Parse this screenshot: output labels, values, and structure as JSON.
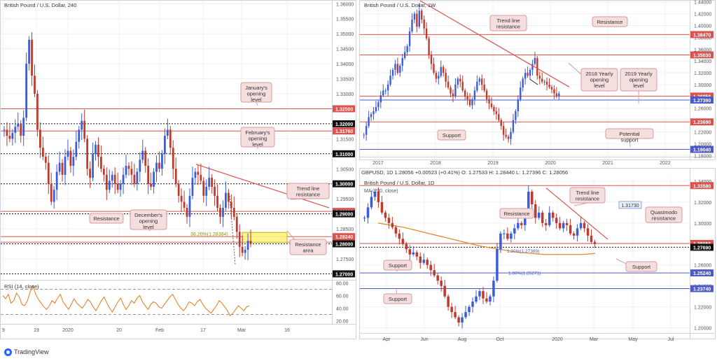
{
  "footer": {
    "brand": "TradingView"
  },
  "colors": {
    "up": "#3b5bdb",
    "down": "#c0392b",
    "res": "#d9534f",
    "sup": "#4c5ac9",
    "black": "#111111",
    "trend": "#d9534f",
    "rsi": "#e07b20",
    "ma": "#e08a2c",
    "zone": "#fff37a",
    "callout_bg": "#f5dede",
    "callout_border": "#d89a9a"
  },
  "chart_data": [
    {
      "id": "h4",
      "type": "candlestick",
      "title": "British Pound / U.S. Dollar, 240",
      "x_ticks": [
        "9",
        "19",
        "2020",
        "20",
        "Feb",
        "17",
        "Mar",
        "16"
      ],
      "y_ticks": [
        "1.36000",
        "1.35500",
        "1.35000",
        "1.34500",
        "1.34000",
        "1.33500",
        "1.33000",
        "1.32500",
        "1.32000",
        "1.31500",
        "1.31000",
        "1.30500",
        "1.30000",
        "1.29500",
        "1.29000",
        "1.28500",
        "1.28000",
        "1.27500",
        "1.27000"
      ],
      "ylim": [
        1.268,
        1.361
      ],
      "levels": [
        {
          "value": "1.32500",
          "y": 1.325,
          "style": "res"
        },
        {
          "value": "1.32000",
          "y": 1.32,
          "style": "black"
        },
        {
          "value": "1.31760",
          "y": 1.3176,
          "style": "res"
        },
        {
          "value": "1.31000",
          "y": 1.31,
          "style": "black"
        },
        {
          "value": "1.30000",
          "y": 1.3,
          "style": "black"
        },
        {
          "value": "1.29080",
          "y": 1.2908,
          "style": "res"
        },
        {
          "value": "1.29000",
          "y": 1.29,
          "style": "black"
        },
        {
          "value": "1.28240",
          "y": 1.2824,
          "style": "res"
        },
        {
          "value": "1.28056",
          "y": 1.28056,
          "style": "res"
        },
        {
          "value": "1.28000",
          "y": 1.28,
          "style": "black"
        },
        {
          "value": "1.27000",
          "y": 1.27,
          "style": "black"
        }
      ],
      "fib_label": "38.20%(1.28384)",
      "zone": [
        1.2838,
        1.2805
      ],
      "path": [
        1.318,
        1.316,
        1.315,
        1.317,
        1.319,
        1.32,
        1.316,
        1.322,
        1.34,
        1.348,
        1.336,
        1.33,
        1.318,
        1.312,
        1.309,
        1.307,
        1.3,
        1.294,
        1.298,
        1.304,
        1.307,
        1.303,
        1.309,
        1.311,
        1.306,
        1.309,
        1.314,
        1.318,
        1.321,
        1.315,
        1.305,
        1.302,
        1.31,
        1.313,
        1.309,
        1.305,
        1.303,
        1.298,
        1.301,
        1.303,
        1.3,
        1.298,
        1.3,
        1.303,
        1.306,
        1.305,
        1.303,
        1.3,
        1.304,
        1.308,
        1.311,
        1.306,
        1.3,
        1.299,
        1.304,
        1.307,
        1.305,
        1.31,
        1.316,
        1.318,
        1.312,
        1.305,
        1.3,
        1.296,
        1.294,
        1.292,
        1.289,
        1.296,
        1.302,
        1.304,
        1.303,
        1.301,
        1.296,
        1.299,
        1.302,
        1.299,
        1.296,
        1.292,
        1.289,
        1.292,
        1.297,
        1.294,
        1.292,
        1.289,
        1.284,
        1.279,
        1.277,
        1.278,
        1.281,
        1.28
      ]
    },
    {
      "id": "rsi",
      "type": "line",
      "title": "RSI (14, close)",
      "y_ticks": [
        "80.00",
        "60.00",
        "40.00",
        "20.00"
      ],
      "ylim": [
        15,
        85
      ],
      "guides": [
        70,
        30
      ],
      "values": [
        60,
        55,
        62,
        48,
        52,
        64,
        58,
        46,
        44,
        52,
        66,
        76,
        62,
        54,
        48,
        42,
        38,
        44,
        52,
        48,
        56,
        62,
        50,
        44,
        38,
        46,
        55,
        48,
        44,
        40,
        46,
        54,
        50,
        42,
        36,
        44,
        52,
        58,
        48,
        40,
        34,
        42,
        50,
        56,
        46,
        38,
        44,
        52,
        48,
        56,
        60,
        50,
        44,
        38,
        46,
        50,
        48,
        42,
        40,
        46,
        52,
        58,
        62,
        54,
        46,
        40,
        36,
        42,
        50,
        48,
        44,
        50,
        54,
        46,
        40,
        36,
        32,
        38,
        44,
        52,
        48,
        42,
        36,
        28,
        32,
        38,
        44,
        40,
        36,
        42,
        44
      ]
    },
    {
      "id": "weekly",
      "type": "candlestick",
      "title": "British Pound / U.S. Dollar, 1W",
      "x_ticks": [
        "2017",
        "2018",
        "2019",
        "2020",
        "2021",
        "2022"
      ],
      "y_ticks": [
        "1.44000",
        "1.42000",
        "1.40000",
        "1.38000",
        "1.36000",
        "1.34000",
        "1.32000",
        "1.30000",
        "1.28000",
        "1.26000",
        "1.24000",
        "1.22000",
        "1.20000",
        "1.18000"
      ],
      "ylim": [
        1.178,
        1.442
      ],
      "levels": [
        {
          "value": "1.38470",
          "y": 1.3847,
          "style": "res"
        },
        {
          "value": "1.35030",
          "y": 1.3503,
          "style": "res"
        },
        {
          "value": "1.28056",
          "y": 1.28056,
          "style": "res"
        },
        {
          "value": "1.27390",
          "y": 1.2739,
          "style": "sup"
        },
        {
          "value": "1.23690",
          "y": 1.2369,
          "style": "res"
        },
        {
          "value": "1.19040",
          "y": 1.1904,
          "style": "sup"
        }
      ],
      "path": [
        1.215,
        1.23,
        1.245,
        1.25,
        1.255,
        1.262,
        1.27,
        1.282,
        1.29,
        1.29,
        1.3,
        1.315,
        1.325,
        1.335,
        1.32,
        1.332,
        1.345,
        1.355,
        1.365,
        1.39,
        1.41,
        1.42,
        1.398,
        1.425,
        1.41,
        1.395,
        1.378,
        1.35,
        1.335,
        1.32,
        1.31,
        1.315,
        1.33,
        1.32,
        1.305,
        1.295,
        1.285,
        1.28,
        1.3,
        1.31,
        1.305,
        1.29,
        1.28,
        1.275,
        1.265,
        1.275,
        1.29,
        1.305,
        1.31,
        1.3,
        1.29,
        1.275,
        1.268,
        1.262,
        1.255,
        1.25,
        1.24,
        1.23,
        1.215,
        1.212,
        1.208,
        1.22,
        1.24,
        1.255,
        1.275,
        1.295,
        1.31,
        1.32,
        1.315,
        1.325,
        1.335,
        1.345,
        1.315,
        1.31,
        1.305,
        1.305,
        1.3,
        1.296,
        1.292,
        1.285,
        1.28,
        1.285
      ]
    },
    {
      "id": "daily",
      "type": "candlestick",
      "title": "British Pound / U.S. Dollar, 1D",
      "ohlc_bar": {
        "symbol": "GBPUSD, 1D",
        "change": "1.28056 +0.00523 (+0.41%)",
        "o": "O: 1.27533",
        "h": "H: 1.28440",
        "l": "L: 1.27396",
        "c": "C: 1.28056"
      },
      "ma_label": "MA (200, close)",
      "x_ticks": [
        "Apr",
        "Jun",
        "Aug",
        "Oct",
        "2020",
        "Mar",
        "May",
        "Jul"
      ],
      "y_ticks": [
        "1.34000",
        "1.32000",
        "1.30000",
        "1.28000",
        "1.26000",
        "1.24000",
        "1.22000",
        "1.20000"
      ],
      "ylim": [
        1.195,
        1.344
      ],
      "levels": [
        {
          "value": "1.33580",
          "y": 1.3358,
          "style": "res"
        },
        {
          "value": "1.28056",
          "y": 1.28056,
          "style": "res"
        },
        {
          "value": "1.27690",
          "y": 1.2769,
          "style": "black"
        },
        {
          "value": "1.25240",
          "y": 1.2524,
          "style": "sup"
        },
        {
          "value": "1.23740",
          "y": 1.2374,
          "style": "sup"
        }
      ],
      "extra_label": "1.31730",
      "fib_labels": [
        "1.20%(1.27389)",
        "1.80%(1.25271)"
      ],
      "path": [
        1.305,
        1.315,
        1.325,
        1.33,
        1.32,
        1.31,
        1.305,
        1.3,
        1.296,
        1.29,
        1.285,
        1.28,
        1.275,
        1.27,
        1.272,
        1.268,
        1.262,
        1.265,
        1.26,
        1.255,
        1.25,
        1.245,
        1.24,
        1.23,
        1.22,
        1.215,
        1.21,
        1.205,
        1.21,
        1.215,
        1.22,
        1.225,
        1.23,
        1.235,
        1.228,
        1.225,
        1.23,
        1.245,
        1.275,
        1.29,
        1.29,
        1.285,
        1.29,
        1.295,
        1.3,
        1.298,
        1.31,
        1.33,
        1.318,
        1.305,
        1.31,
        1.3,
        1.298,
        1.31,
        1.305,
        1.3,
        1.295,
        1.3,
        1.298,
        1.29,
        1.288,
        1.295,
        1.3,
        1.295,
        1.288,
        1.282,
        1.28
      ],
      "ma_path": [
        1.3,
        1.298,
        1.296,
        1.293,
        1.29,
        1.287,
        1.284,
        1.281,
        1.278,
        1.276,
        1.274,
        1.272,
        1.271,
        1.27,
        1.27,
        1.27,
        1.27,
        1.271
      ]
    }
  ],
  "annotations": {
    "h4": [
      "January's opening level",
      "February's opening level",
      "Trend line resistance",
      "Resistance",
      "December's opening level",
      "Resistance area"
    ],
    "weekly": [
      "Trend line resistance",
      "Resistance",
      "2018 Yearly opening level",
      "2019 Yearly opening level",
      "Support",
      "Potential support"
    ],
    "daily": [
      "Trend line resistance",
      "Resistance",
      "Quasimodo resistance",
      "Support",
      "Support",
      "Support"
    ]
  }
}
